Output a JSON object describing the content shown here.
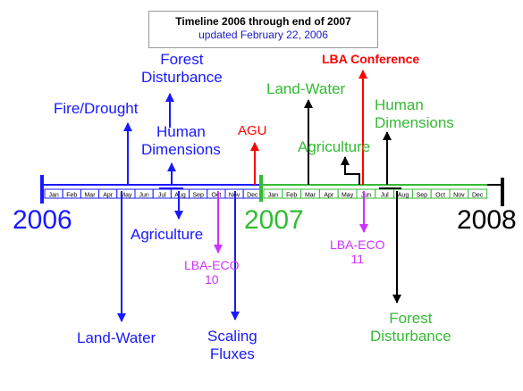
{
  "title": "Timeline 2006 through end of 2007",
  "subtitle": "updated February 22, 2006",
  "years": {
    "y2006": "2006",
    "y2007": "2007",
    "y2008": "2008"
  },
  "months_2006": [
    "Jan",
    "Feb",
    "Mar",
    "Apr",
    "May",
    "Jun",
    "Jul",
    "Aug",
    "Sep",
    "Oct",
    "Nov",
    "Dec"
  ],
  "months_2007": [
    "Jan",
    "Feb",
    "Mar",
    "Apr",
    "May",
    "Jun",
    "Jul",
    "Aug",
    "Sep",
    "Oct",
    "Nov",
    "Dec"
  ],
  "labels": {
    "forest_disturbance_2006": "Forest\nDisturbance",
    "fire_drought": "Fire/Drought",
    "human_dimensions_2006": "Human\nDimensions",
    "agu": "AGU",
    "agriculture_2006": "Agriculture",
    "lba_eco_10": "LBA-ECO\n10",
    "land_water_2006": "Land-Water",
    "scaling_fluxes": "Scaling\nFluxes",
    "lba_conference": "LBA Conference",
    "land_water_2007": "Land-Water",
    "agriculture_2007": "Agriculture",
    "human_dimensions_2007": "Human\nDimensions",
    "lba_eco_11": "LBA-ECO\n11",
    "forest_disturbance_2007": "Forest\nDisturbance"
  },
  "colors": {
    "blue": "#1919ff",
    "green": "#33bb33",
    "red": "#ff0000",
    "purple": "#cc33ff",
    "black": "#000000"
  }
}
